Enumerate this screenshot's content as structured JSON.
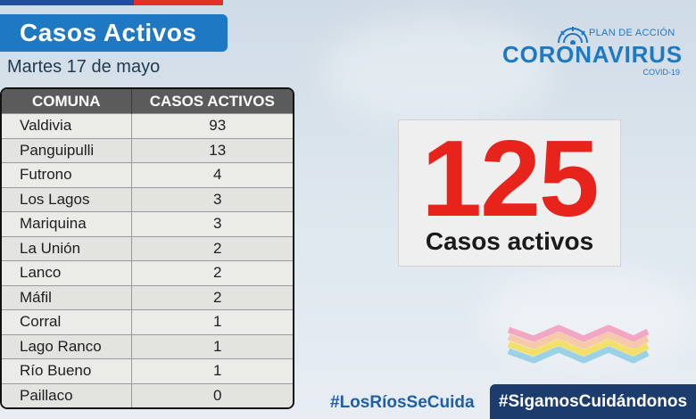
{
  "header": {
    "title": "Casos Activos",
    "date": "Martes 17 de mayo"
  },
  "table": {
    "headers": [
      "COMUNA",
      "CASOS ACTIVOS"
    ],
    "rows": [
      {
        "comuna": "Valdivia",
        "casos": "93"
      },
      {
        "comuna": "Panguipulli",
        "casos": "13"
      },
      {
        "comuna": "Futrono",
        "casos": "4"
      },
      {
        "comuna": "Los Lagos",
        "casos": "3"
      },
      {
        "comuna": "Mariquina",
        "casos": "3"
      },
      {
        "comuna": "La Unión",
        "casos": "2"
      },
      {
        "comuna": "Lanco",
        "casos": "2"
      },
      {
        "comuna": "Máfil",
        "casos": "2"
      },
      {
        "comuna": "Corral",
        "casos": "1"
      },
      {
        "comuna": "Lago Ranco",
        "casos": "1"
      },
      {
        "comuna": "Río Bueno",
        "casos": "1"
      },
      {
        "comuna": "Paillaco",
        "casos": "0"
      }
    ]
  },
  "logo": {
    "subtitle": "PLAN DE ACCIÓN",
    "main": "CORONAVIRUS",
    "covid": "COVID-19",
    "icon": "virus-icon"
  },
  "summary": {
    "total": "125",
    "label": "Casos activos"
  },
  "footer": {
    "hashtag_1": "#LosRíosSeCuida",
    "hashtag_2": "#SigamosCuidándonos"
  },
  "colors": {
    "banner_blue": "#1e78c2",
    "number_red": "#e8231c",
    "footer_navy": "#1d3c6e",
    "table_header": "#5b5b5b"
  }
}
